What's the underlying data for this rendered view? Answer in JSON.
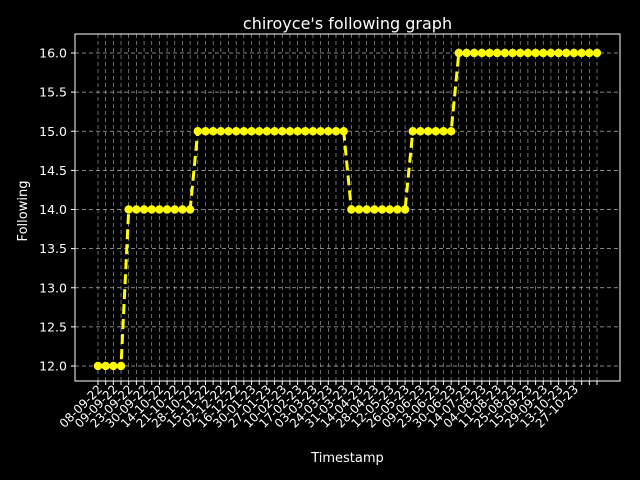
{
  "chart_data": {
    "type": "line",
    "title": "chiroyce's following graph",
    "xlabel": "Timestamp",
    "ylabel": "Following",
    "ylim": [
      11.9,
      16.2
    ],
    "yticks": [
      12.0,
      12.5,
      13.0,
      13.5,
      14.0,
      14.5,
      15.0,
      15.5,
      16.0
    ],
    "ytick_labels": [
      "12.0",
      "12.5",
      "13.0",
      "13.5",
      "14.0",
      "14.5",
      "15.0",
      "15.5",
      "16.0"
    ],
    "x_tick_labels": [
      "08-09-22",
      "09-09-22",
      "23-09-22",
      "30-09-22",
      "14-10-22",
      "21-10-22",
      "28-10-22",
      "15-11-22",
      "02-12-22",
      "16-12-22",
      "30-01-23",
      "27-01-23",
      "10-02-23",
      "17-02-23",
      "03-03-23",
      "24-03-23",
      "31-03-23",
      "14-04-23",
      "28-04-23",
      "12-05-23",
      "26-05-23",
      "09-06-23",
      "23-06-23",
      "30-06-23",
      "14-07-23",
      "04-08-23",
      "11-08-23",
      "25-08-23",
      "15-09-23",
      "29-09-23",
      "13-10-23",
      "27-10-23"
    ],
    "series": [
      {
        "values": [
          12,
          12,
          12,
          12,
          14,
          14,
          14,
          14,
          14,
          14,
          14,
          14,
          14,
          15,
          15,
          15,
          15,
          15,
          15,
          15,
          15,
          15,
          15,
          15,
          15,
          15,
          15,
          15,
          15,
          15,
          15,
          15,
          15,
          14,
          14,
          14,
          14,
          14,
          14,
          14,
          14,
          15,
          15,
          15,
          15,
          15,
          15,
          16,
          16,
          16,
          16,
          16,
          16,
          16,
          16,
          16,
          16,
          16,
          16,
          16,
          16,
          16,
          16,
          16,
          16,
          16
        ],
        "color": "#ffff00"
      }
    ],
    "grid": true,
    "background": "#000000",
    "foreground": "#ffffff"
  }
}
